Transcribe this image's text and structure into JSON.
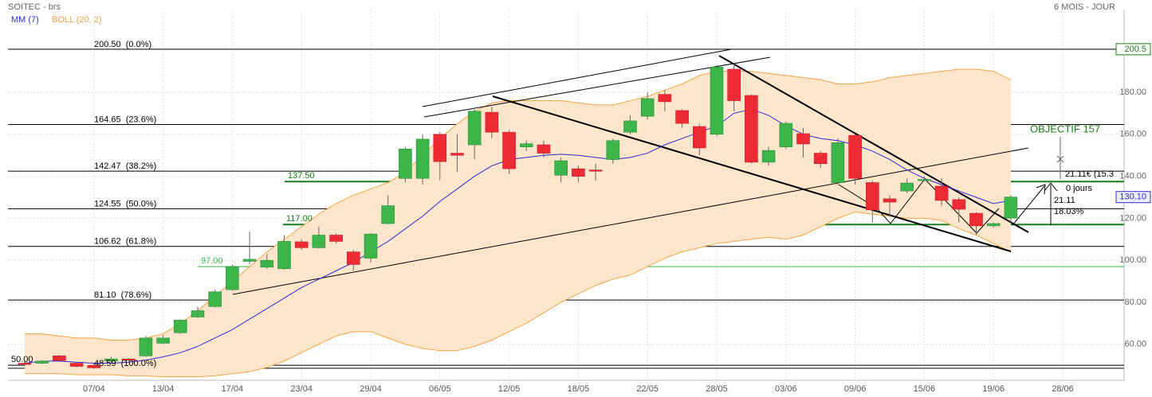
{
  "chart_data": {
    "type": "candlestick",
    "title": "SOITEC - brs",
    "period": "6 MOIS - JOUR",
    "categories": [
      null,
      null,
      null,
      null,
      "07/04",
      null,
      null,
      null,
      "13/04",
      null,
      null,
      null,
      "17/04",
      null,
      null,
      null,
      "23/04",
      null,
      null,
      null,
      "29/04",
      null,
      null,
      null,
      "06/05",
      null,
      null,
      null,
      "12/05",
      null,
      null,
      null,
      "18/05",
      null,
      null,
      null,
      "22/05",
      null,
      null,
      null,
      "28/05",
      null,
      null,
      null,
      "03/06",
      null,
      null,
      null,
      "09/06",
      null,
      null,
      null,
      "15/06",
      null,
      null,
      null,
      "19/06",
      null,
      null,
      null,
      "28/06"
    ],
    "open": [
      51,
      51,
      54.5,
      51,
      50,
      52,
      53,
      54.5,
      60.5,
      65.5,
      73,
      78,
      86,
      99.5,
      96.7,
      96,
      108.8,
      106,
      112,
      104,
      101,
      117.5,
      139,
      139,
      160,
      151,
      155,
      170.5,
      161,
      154,
      155,
      140.5,
      143.6,
      143,
      148,
      161,
      168.6,
      179,
      171.3,
      163.7,
      160,
      191,
      178.5,
      146.7,
      154,
      160.3,
      151,
      137,
      159.5,
      137,
      129.3,
      133,
      138.2,
      135.3,
      128.9,
      122.4,
      116.4,
      120.1,
      null,
      null,
      null
    ],
    "high": [
      52,
      52.5,
      55,
      51.5,
      50.5,
      54,
      53.5,
      64,
      64.5,
      72,
      78,
      86,
      98,
      113.7,
      103,
      112,
      110,
      116,
      113,
      105,
      113,
      131,
      154,
      160,
      161,
      160,
      172,
      173,
      162,
      157,
      157,
      149,
      145,
      146,
      158,
      169,
      180,
      181,
      172,
      165,
      193,
      194,
      179,
      154,
      166,
      163,
      152,
      158,
      160,
      138,
      131,
      139,
      140,
      139,
      130,
      123,
      118,
      131,
      null,
      null,
      null
    ],
    "low": [
      49.5,
      50.5,
      52,
      49,
      48.3,
      51.5,
      52,
      54,
      60,
      65,
      72.5,
      77.5,
      85.5,
      98,
      96,
      95.5,
      105,
      105.5,
      108,
      95,
      99,
      117,
      137,
      136,
      138,
      142,
      148,
      158,
      141,
      152,
      149,
      137,
      137,
      138,
      146,
      160,
      167,
      171,
      163,
      150,
      159,
      171,
      146,
      145,
      153,
      149,
      144,
      136,
      136,
      118,
      121,
      132,
      137.5,
      126,
      118,
      112,
      115.5,
      118,
      null,
      null,
      null
    ],
    "close": [
      50.5,
      52,
      52.3,
      49.5,
      48.8,
      53,
      52.5,
      63,
      63,
      71.5,
      76,
      85,
      97,
      100.5,
      100,
      109,
      106,
      112,
      109,
      98,
      112.5,
      126,
      153,
      157.7,
      147,
      150,
      171,
      161,
      143.6,
      155.5,
      151,
      147.4,
      140,
      142.5,
      157,
      166.4,
      177,
      175.5,
      165.2,
      153.5,
      192,
      176,
      146.7,
      152.3,
      165.2,
      155.4,
      146,
      156,
      139,
      124,
      127.7,
      136.8,
      138.5,
      128.5,
      124.3,
      116.4,
      117.5,
      130.1,
      null,
      null,
      null
    ],
    "up_color": "#3cb54a",
    "down_color": "#ee2a35",
    "overlays": [
      {
        "name": "MM (7)",
        "color": "#2b2bd6",
        "values": [
          51,
          52,
          52,
          51.5,
          51,
          51,
          51.5,
          52.5,
          54,
          56,
          59,
          63,
          67,
          72,
          77,
          82,
          87,
          91,
          95,
          99,
          104,
          109,
          115,
          121,
          128,
          134,
          140,
          145,
          148,
          149,
          150,
          150.5,
          150,
          149,
          148,
          149,
          151,
          155,
          158,
          161,
          164,
          170,
          172,
          169,
          164,
          160,
          158,
          157,
          155,
          152,
          148,
          143,
          139,
          136,
          133,
          130,
          127,
          128.5,
          null,
          null,
          null
        ]
      },
      {
        "name": "BOLL (20, 2)",
        "color": "#f3a445",
        "fill": "#fde6cc",
        "upper": [
          65,
          65,
          64,
          63,
          63,
          62,
          62,
          63,
          65,
          70,
          76,
          83,
          90,
          97,
          104,
          110,
          116,
          122,
          127,
          131,
          134,
          137,
          142,
          150,
          158,
          165,
          171,
          175,
          176,
          176,
          176,
          176,
          175,
          174,
          174,
          176,
          178,
          181,
          184,
          188,
          190,
          190,
          190,
          189,
          188,
          187,
          186,
          184,
          184,
          185,
          187,
          188,
          189,
          190,
          191,
          191,
          190,
          186,
          null,
          null,
          null
        ],
        "lower": [
          46,
          46,
          46,
          45.5,
          45.5,
          45.5,
          45,
          45,
          44.5,
          44.5,
          44.5,
          45,
          46,
          47,
          49,
          52,
          56,
          60,
          64,
          66,
          66,
          63,
          60,
          58,
          57,
          57,
          59,
          62,
          66,
          70,
          75,
          80,
          84,
          88,
          91,
          93,
          97,
          101,
          104,
          106,
          108,
          109,
          110,
          111,
          110,
          112,
          116,
          120,
          123,
          122,
          121,
          120,
          120,
          119,
          115,
          112,
          108,
          104,
          null,
          null,
          null
        ]
      }
    ],
    "ylim": [
      44,
      219.4
    ],
    "yticks": [
      {
        "value": 60,
        "label": "60.00"
      },
      {
        "value": 80,
        "label": "80.00"
      },
      {
        "value": 100,
        "label": "100.00"
      },
      {
        "value": 120,
        "label": "120.00"
      },
      {
        "value": 140,
        "label": "140.00"
      },
      {
        "value": 160,
        "label": "160.00"
      },
      {
        "value": 180,
        "label": "180.00"
      }
    ],
    "fibonacci": [
      {
        "value": 200.5,
        "label": "200.50  (0.0%)"
      },
      {
        "value": 164.65,
        "label": "164.65  (23.6%)"
      },
      {
        "value": 142.47,
        "label": "142.47  (38.2%)"
      },
      {
        "value": 124.55,
        "label": "124.55  (50.0%)"
      },
      {
        "value": 106.62,
        "label": "106.62  (61.8%)"
      },
      {
        "value": 81.1,
        "label": "81.10  (78.6%)"
      },
      {
        "value": 48.59,
        "label": "48.59  (100.0%)"
      }
    ],
    "levels": [
      {
        "value": 137.5,
        "label": "137.50",
        "color": "#1a7f1a"
      },
      {
        "value": 117,
        "label": "117.00",
        "color": "#1a7f1a"
      },
      {
        "value": 97,
        "label": "97.00",
        "color": "#3cb54a"
      },
      {
        "value": 50,
        "label": "50.00",
        "color": "#000000"
      }
    ],
    "price_markers": [
      {
        "value": 200.5,
        "label": "200.5",
        "color": "#1a7f1a"
      },
      {
        "value": 130.1,
        "label": "130.10",
        "color": "#2b2bd6"
      }
    ],
    "annotations": [
      "OBJECTIF 157",
      "21.11€ (15.3",
      "0 jours",
      "21.11",
      "18.03%"
    ]
  }
}
